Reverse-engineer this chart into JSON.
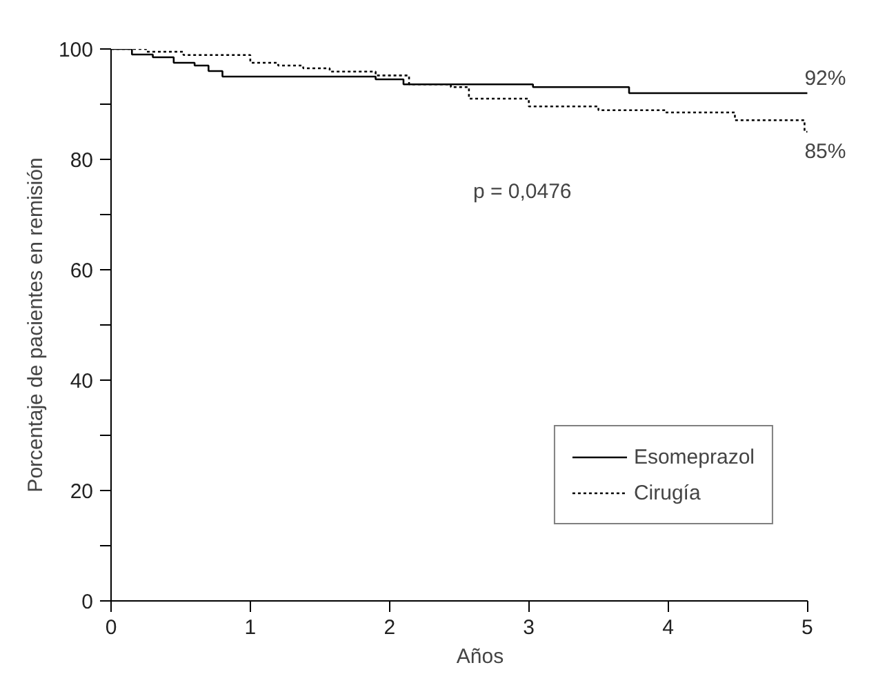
{
  "chart_data": {
    "type": "step",
    "xlabel": "Años",
    "ylabel": "Porcentaje de pacientes en remisión",
    "xlim": [
      0,
      5
    ],
    "ylim": [
      0,
      100
    ],
    "xticks": [
      0,
      1,
      2,
      3,
      4,
      5
    ],
    "yticks": [
      0,
      {
        "value": 10,
        "label": null
      },
      20,
      {
        "value": 30,
        "label": null
      },
      40,
      {
        "value": 50,
        "label": null
      },
      60,
      {
        "value": 70,
        "label": null
      },
      80,
      {
        "value": 90,
        "label": null
      },
      100
    ],
    "grid": false,
    "legend": "bottom right",
    "marker": "none",
    "series": [
      {
        "name": "Esomeprazol",
        "color": "#000000",
        "line_style": "solid",
        "x": [
          0,
          0.15,
          0.3,
          0.45,
          0.6,
          0.7,
          0.8,
          1.9,
          2.1,
          3.03,
          3.72,
          5
        ],
        "values": [
          100,
          99,
          98.5,
          97.5,
          97,
          96,
          95,
          94.5,
          93.6,
          93.1,
          92,
          92
        ]
      },
      {
        "name": "Cirugía",
        "color": "#000000",
        "line_style": "dotted",
        "x": [
          0,
          0.25,
          0.52,
          1.0,
          1.2,
          1.38,
          1.57,
          1.9,
          2.14,
          2.44,
          2.57,
          3.0,
          3.5,
          3.98,
          4.48,
          4.98,
          5
        ],
        "values": [
          100,
          99.5,
          98.9,
          97.5,
          97,
          96.5,
          95.9,
          95.2,
          93.6,
          93.1,
          91,
          89.6,
          88.9,
          88.5,
          87.1,
          85,
          85
        ]
      }
    ],
    "annotations": [
      {
        "text": "92%",
        "x": 5,
        "y": 92
      },
      {
        "text": "85%",
        "x": 5,
        "y": 85
      },
      "p = 0,0476"
    ]
  }
}
